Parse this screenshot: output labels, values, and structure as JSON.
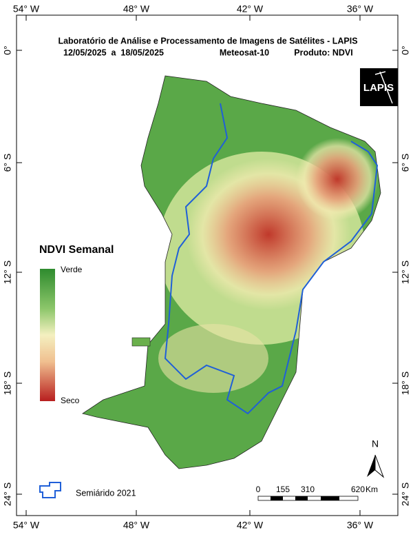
{
  "header": {
    "title": "Laboratório de Análise e Processamento de Imagens de Satélites - LAPIS",
    "period": "12/05/2025  a  18/05/2025",
    "satellite": "Meteosat-10",
    "product": "Produto: NDVI"
  },
  "grid": {
    "lon_labels": [
      "54° W",
      "48° W",
      "42° W",
      "36° W"
    ],
    "lat_labels": [
      "0°",
      "6° S",
      "12° S",
      "18° S",
      "24° S"
    ]
  },
  "logo": "LAPIS",
  "legend": {
    "title": "NDVI Semanal",
    "high": "Verde",
    "low": "Seco",
    "semiarid": "Semiárido 2021"
  },
  "scale": {
    "labels": [
      "0",
      "155",
      "310",
      "620"
    ],
    "unit": "Km"
  },
  "north": "N"
}
